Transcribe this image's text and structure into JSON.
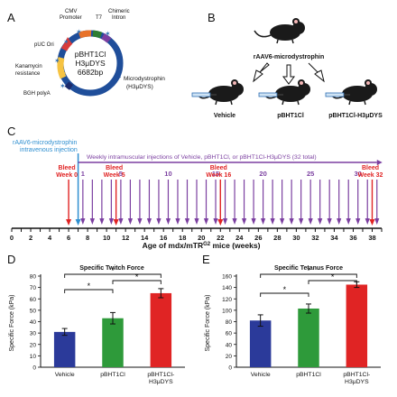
{
  "panels": {
    "A": {
      "letter": "A",
      "plasmid": {
        "name_line1": "pBHT1Cl",
        "name_line2": "H3μDYS",
        "name_line3": "6682bp",
        "features": {
          "cmv": "CMV",
          "promoter": "Promoter",
          "t7": "T7",
          "chimeric": "Chimeric",
          "intron": "Intron",
          "puc": "pUC Ori",
          "kan1": "Kanamycin",
          "kan2": "resistance",
          "bgh": "BGH polyA",
          "micro1": "Microdystrophin",
          "micro2": "(H3μDYS)"
        },
        "colors": {
          "backbone": "#1f4e9a",
          "cmv": "#e8722a",
          "promoter": "#e8722a",
          "t7": "#2e7d32",
          "chimeric": "#7b3fa0",
          "kan": "#f6c342",
          "puc": "#d83a3a",
          "bgh": "#1b2a6b",
          "star": "#2f6fb3"
        }
      }
    },
    "B": {
      "letter": "B",
      "top_label": "rAAV6-microdystrophin",
      "groups": [
        "Vehicle",
        "pBHT1Cl",
        "pBHT1Cl-H3μDYS"
      ]
    },
    "C": {
      "letter": "C",
      "iv_line1": "rAAV6-microdystrophin",
      "iv_line2": "intravenous injection",
      "weekly_label": "Weekly intramuscular injections of Vehicle, pBHT1Cl, or pBHT1Cl-H3μDYS (32 total)",
      "bleeds": [
        {
          "line1": "Bleed",
          "line2": "Week 0",
          "week": 6
        },
        {
          "line1": "Bleed",
          "line2": "Week 5",
          "week": 11
        },
        {
          "line1": "Bleed",
          "line2": "Week 16",
          "week": 22
        },
        {
          "line1": "Bleed",
          "line2": "Week 32",
          "week": 38
        }
      ],
      "injection_numbers": [
        "1",
        "5",
        "10",
        "15",
        "20",
        "25",
        "30"
      ],
      "axis_ticks": [
        "0",
        "2",
        "4",
        "6",
        "8",
        "10",
        "12",
        "14",
        "16",
        "18",
        "20",
        "22",
        "24",
        "26",
        "28",
        "30",
        "32",
        "34",
        "36",
        "38"
      ],
      "axis_label_pre": "Age of mdx/mTR",
      "axis_label_sup": "G2",
      "axis_label_post": " mice (weeks)",
      "colors": {
        "blue": "#2f8fd0",
        "purple": "#7b3fa0",
        "red": "#e02424"
      }
    },
    "D": {
      "letter": "D",
      "title": "Specific Twitch Force",
      "ylabel": "Specific Force (kPa)",
      "yticks": [
        "0",
        "10",
        "20",
        "30",
        "40",
        "50",
        "60",
        "70",
        "80"
      ],
      "sig": [
        "*",
        "*",
        "*"
      ],
      "categories": [
        {
          "line1": "Vehicle",
          "line2": ""
        },
        {
          "line1": "pBHT1Cl",
          "line2": ""
        },
        {
          "line1": "pBHT1Cl-",
          "line2": "H3μDYS"
        }
      ]
    },
    "E": {
      "letter": "E",
      "title": "Specific Tetanus Force",
      "ylabel": "Specific Force (kPa)",
      "yticks": [
        "0",
        "20",
        "40",
        "60",
        "80",
        "100",
        "120",
        "140",
        "160"
      ],
      "sig": [
        "*",
        "*",
        "*"
      ],
      "categories": [
        {
          "line1": "Vehicle",
          "line2": ""
        },
        {
          "line1": "pBHT1Cl",
          "line2": ""
        },
        {
          "line1": "pBHT1Cl-",
          "line2": "H3μDYS"
        }
      ]
    }
  },
  "chart_data": [
    {
      "type": "bar",
      "title": "Specific Twitch Force",
      "ylabel": "Specific Force (kPa)",
      "categories": [
        "Vehicle",
        "pBHT1Cl",
        "pBHT1Cl-H3μDYS"
      ],
      "values": [
        31,
        43,
        65
      ],
      "errors": [
        3,
        5,
        4
      ],
      "colors": [
        "#2b3a9a",
        "#2e9a3a",
        "#e02424"
      ],
      "ylim": [
        0,
        80
      ]
    },
    {
      "type": "bar",
      "title": "Specific Tetanus Force",
      "ylabel": "Specific Force (kPa)",
      "categories": [
        "Vehicle",
        "pBHT1Cl",
        "pBHT1Cl-H3μDYS"
      ],
      "values": [
        82,
        103,
        145
      ],
      "errors": [
        10,
        8,
        5
      ],
      "colors": [
        "#2b3a9a",
        "#2e9a3a",
        "#e02424"
      ],
      "ylim": [
        0,
        160
      ]
    }
  ]
}
